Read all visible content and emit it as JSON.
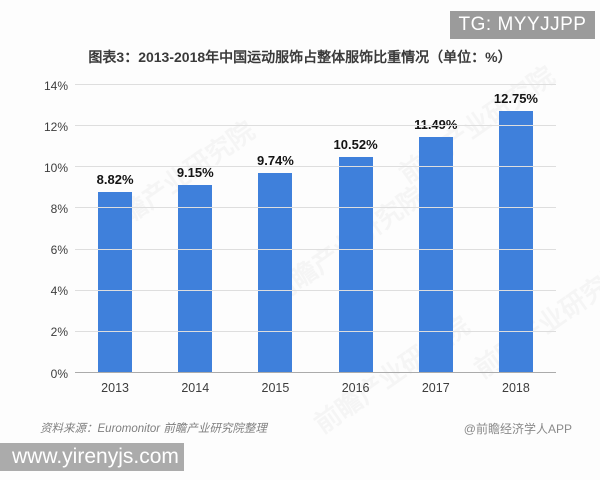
{
  "badge": {
    "label": "TG: MYYJJPP"
  },
  "chart_data": {
    "type": "bar",
    "title": "图表3：2013-2018年中国运动服饰占整体服饰比重情况（单位：%）",
    "categories": [
      "2013",
      "2014",
      "2015",
      "2016",
      "2017",
      "2018"
    ],
    "values": [
      8.82,
      9.15,
      9.74,
      10.52,
      11.49,
      12.75
    ],
    "value_labels": [
      "8.82%",
      "9.15%",
      "9.74%",
      "10.52%",
      "11.49%",
      "12.75%"
    ],
    "xlabel": "",
    "ylabel": "",
    "ylim": [
      0,
      14
    ],
    "ytick_step": 2,
    "ytick_labels": [
      "0%",
      "2%",
      "4%",
      "6%",
      "8%",
      "10%",
      "12%",
      "14%"
    ],
    "grid": true,
    "legend": false,
    "bar_color": "#3f80db"
  },
  "footer": {
    "source": "资料来源：Euromonitor  前瞻产业研究院整理",
    "credit": "@前瞻经济学人APP"
  },
  "watermarks": {
    "site_banner": "www.yirenyjs.com",
    "diagonal": "前瞻产业研究院"
  },
  "colors": {
    "bar": "#3f80db",
    "gridline": "#dedede",
    "baseline": "#ababab",
    "badge_bg": "#9b9b9b",
    "banner_bg": "#ababab",
    "title_text": "#3a3a3a",
    "source_text": "#7f7f7f"
  }
}
